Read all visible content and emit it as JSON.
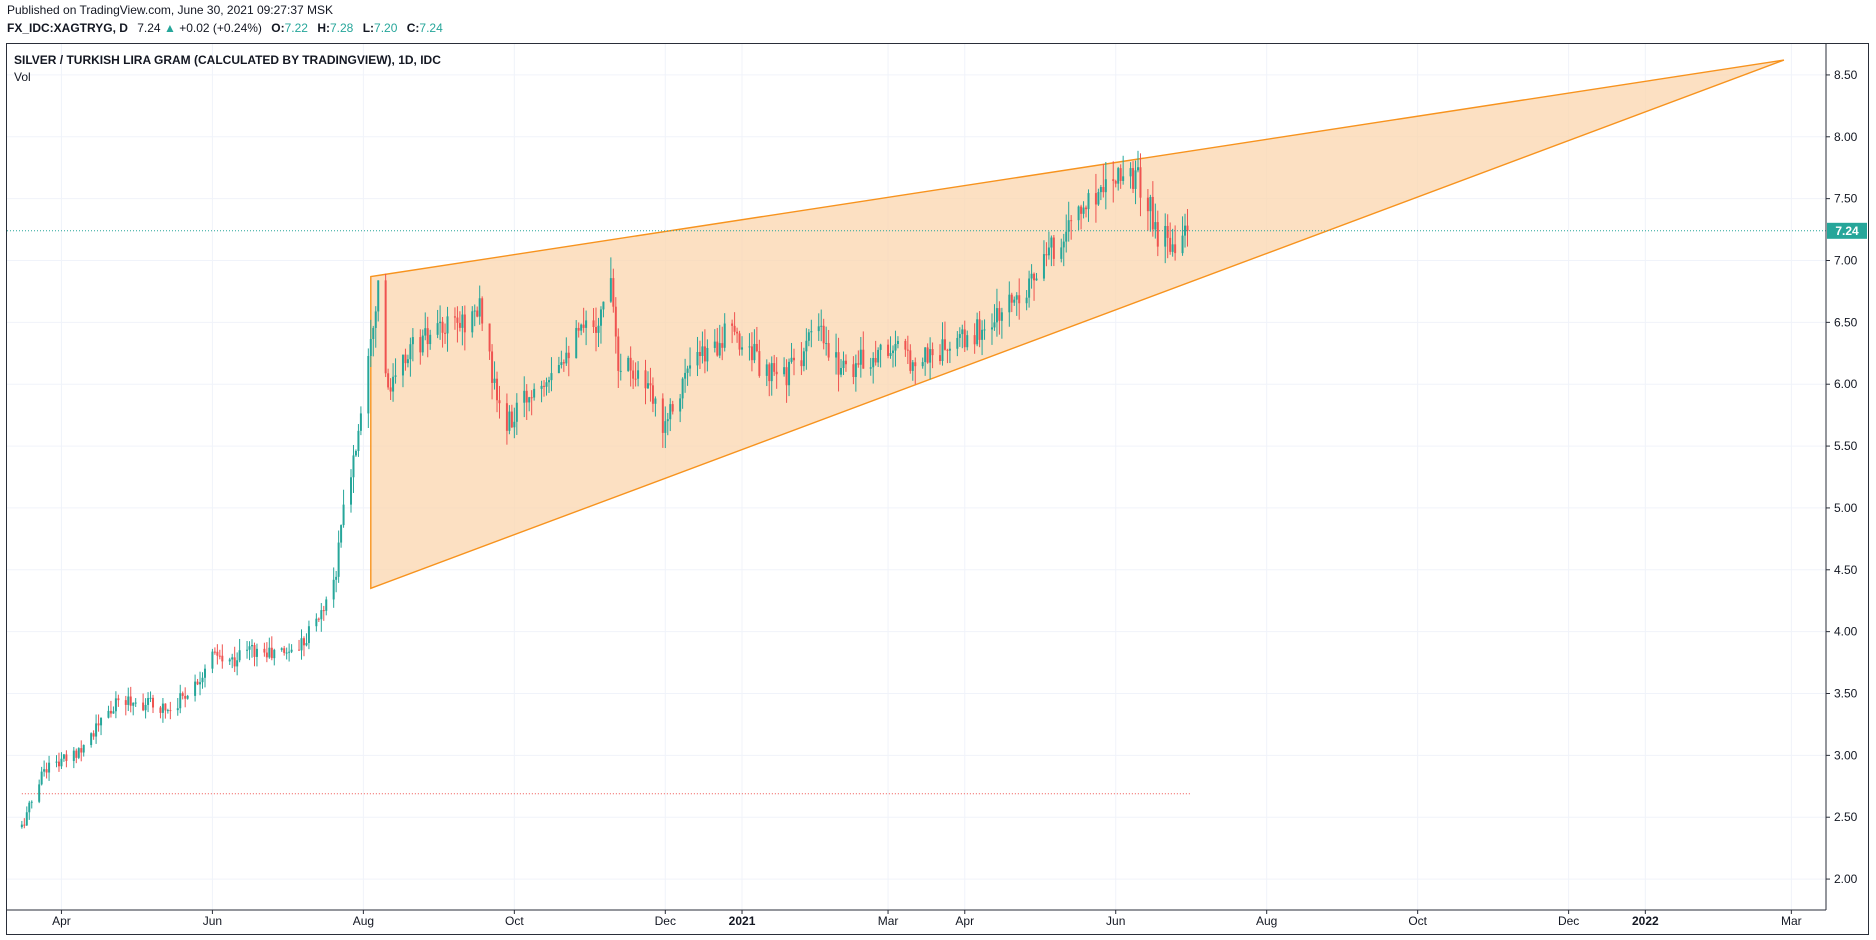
{
  "header": {
    "published": "Published on TradingView.com, June 30, 2021 09:27:37 MSK",
    "symbol": "FX_IDC:XAGTRYG, D",
    "last": "7.24",
    "change": "+0.02 (+0.24%)",
    "o_label": "O:",
    "o_value": "7.22",
    "h_label": "H:",
    "h_value": "7.28",
    "l_label": "L:",
    "l_value": "7.20",
    "c_label": "C:",
    "c_value": "7.24"
  },
  "chart_title": "SILVER / TURKISH LIRA GRAM (CALCULATED BY TRADINGVIEW), 1D, IDC",
  "vol_label": "Vol",
  "colors": {
    "up": "#26a69a",
    "down": "#ef5350",
    "pattern_line": "#f7931e",
    "pattern_fill": "#fbd6ae",
    "price_tag": "#26a69a",
    "grid": "#f0f3fa"
  },
  "chart_data": {
    "type": "candlestick",
    "y_ticks": [
      "2.00",
      "2.50",
      "3.00",
      "3.50",
      "4.00",
      "4.50",
      "5.00",
      "5.50",
      "6.00",
      "6.50",
      "7.00",
      "7.50",
      "8.00",
      "8.50"
    ],
    "ylim": [
      1.75,
      8.75
    ],
    "x_ticks": [
      {
        "label": "Apr",
        "date": "2020-04-01"
      },
      {
        "label": "Jun",
        "date": "2020-06-01"
      },
      {
        "label": "Aug",
        "date": "2020-08-01"
      },
      {
        "label": "Oct",
        "date": "2020-10-01"
      },
      {
        "label": "Dec",
        "date": "2020-12-01"
      },
      {
        "label": "2021",
        "date": "2021-01-01",
        "bold": true
      },
      {
        "label": "Mar",
        "date": "2021-03-01"
      },
      {
        "label": "Apr",
        "date": "2021-04-01"
      },
      {
        "label": "Jun",
        "date": "2021-06-01"
      },
      {
        "label": "Aug",
        "date": "2021-08-01"
      },
      {
        "label": "Oct",
        "date": "2021-10-01"
      },
      {
        "label": "Dec",
        "date": "2021-12-01"
      },
      {
        "label": "2022",
        "date": "2022-01-01",
        "bold": true
      },
      {
        "label": "Mar",
        "date": "2022-03-01"
      }
    ],
    "last_price": 7.24,
    "last_price_label": "7.24",
    "reference_line_value": 2.69,
    "reference_line_start": "2020-03-16",
    "reference_line_end": "2021-07-01",
    "wedge": {
      "apex_top": {
        "date": "2020-08-04",
        "value": 6.87
      },
      "apex_bottom": {
        "date": "2020-08-04",
        "value": 4.35
      },
      "right": {
        "date": "2022-02-26",
        "value": 8.62
      }
    },
    "path": [
      [
        "2020-03-16",
        2.42
      ],
      [
        "2020-03-25",
        2.9
      ],
      [
        "2020-04-05",
        2.98
      ],
      [
        "2020-04-15",
        3.22
      ],
      [
        "2020-04-25",
        3.45
      ],
      [
        "2020-05-05",
        3.42
      ],
      [
        "2020-05-15",
        3.38
      ],
      [
        "2020-05-25",
        3.58
      ],
      [
        "2020-06-01",
        3.8
      ],
      [
        "2020-06-08",
        3.75
      ],
      [
        "2020-06-15",
        3.86
      ],
      [
        "2020-06-25",
        3.82
      ],
      [
        "2020-07-05",
        3.86
      ],
      [
        "2020-07-15",
        4.15
      ],
      [
        "2020-07-21",
        4.5
      ],
      [
        "2020-07-24",
        5.0
      ],
      [
        "2020-07-29",
        5.5
      ],
      [
        "2020-08-04",
        6.45
      ],
      [
        "2020-08-07",
        6.8
      ],
      [
        "2020-08-11",
        5.9
      ],
      [
        "2020-08-20",
        6.3
      ],
      [
        "2020-09-05",
        6.45
      ],
      [
        "2020-09-18",
        6.6
      ],
      [
        "2020-09-23",
        5.95
      ],
      [
        "2020-09-28",
        5.65
      ],
      [
        "2020-10-08",
        5.95
      ],
      [
        "2020-10-20",
        6.25
      ],
      [
        "2020-11-05",
        6.55
      ],
      [
        "2020-11-09",
        6.95
      ],
      [
        "2020-11-12",
        6.2
      ],
      [
        "2020-11-20",
        6.1
      ],
      [
        "2020-11-30",
        5.7
      ],
      [
        "2020-12-10",
        6.1
      ],
      [
        "2020-12-25",
        6.4
      ],
      [
        "2021-01-05",
        6.3
      ],
      [
        "2021-01-10",
        6.05
      ],
      [
        "2021-01-20",
        6.1
      ],
      [
        "2021-02-01",
        6.45
      ],
      [
        "2021-02-05",
        6.2
      ],
      [
        "2021-02-15",
        6.15
      ],
      [
        "2021-03-01",
        6.3
      ],
      [
        "2021-03-10",
        6.2
      ],
      [
        "2021-03-20",
        6.25
      ],
      [
        "2021-04-01",
        6.35
      ],
      [
        "2021-04-15",
        6.55
      ],
      [
        "2021-04-25",
        6.8
      ],
      [
        "2021-05-01",
        6.9
      ],
      [
        "2021-05-10",
        7.2
      ],
      [
        "2021-05-20",
        7.45
      ],
      [
        "2021-06-01",
        7.75
      ],
      [
        "2021-06-08",
        7.7
      ],
      [
        "2021-06-14",
        7.5
      ],
      [
        "2021-06-18",
        7.2
      ],
      [
        "2021-06-25",
        7.18
      ],
      [
        "2021-06-30",
        7.24
      ]
    ]
  }
}
